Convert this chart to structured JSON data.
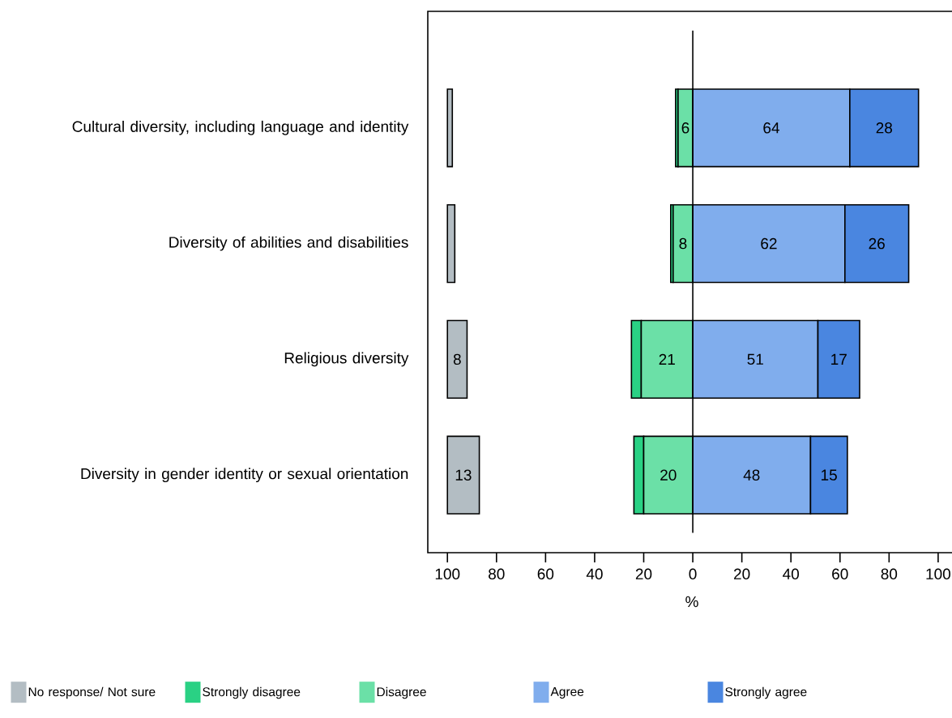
{
  "chart_data": {
    "type": "bar",
    "orientation": "horizontal",
    "xlabel": "%",
    "categories": [
      "Cultural diversity, including language and identity",
      "Diversity of abilities and disabilities",
      "Religious diversity",
      "Diversity in gender identity or sexual orientation"
    ],
    "series": [
      {
        "name": "No response/ Not sure",
        "color": "#b3bdc3",
        "base": [
          -100,
          -100,
          -100,
          -100
        ],
        "values": [
          2,
          3,
          8,
          13
        ],
        "value_labels": [
          null,
          null,
          "8",
          "13"
        ]
      },
      {
        "name": "Strongly disagree",
        "color": "#2ad184",
        "base": [
          -6,
          -8,
          -21,
          -20
        ],
        "values": [
          -1,
          -1,
          -4,
          -4
        ],
        "value_labels": [
          null,
          null,
          null,
          null
        ]
      },
      {
        "name": "Disagree",
        "color": "#6be0a7",
        "base": [
          0,
          0,
          0,
          0
        ],
        "values": [
          -6,
          -8,
          -21,
          -20
        ],
        "value_labels": [
          "6",
          "8",
          "21",
          "20"
        ]
      },
      {
        "name": "Agree",
        "color": "#80aded",
        "base": [
          0,
          0,
          0,
          0
        ],
        "values": [
          64,
          62,
          51,
          48
        ],
        "value_labels": [
          "64",
          "62",
          "51",
          "48"
        ]
      },
      {
        "name": "Strongly agree",
        "color": "#4a86e0",
        "base": [
          64,
          62,
          51,
          48
        ],
        "values": [
          28,
          26,
          17,
          15
        ],
        "value_labels": [
          "28",
          "26",
          "17",
          "15"
        ]
      }
    ],
    "xlim": [
      -108,
      107.3
    ],
    "xticks": [
      {
        "value": -100,
        "label": "100"
      },
      {
        "value": -80,
        "label": "80"
      },
      {
        "value": -60,
        "label": "60"
      },
      {
        "value": -40,
        "label": "40"
      },
      {
        "value": -20,
        "label": "20"
      },
      0,
      20,
      40,
      60,
      80,
      100
    ],
    "ref_lines": [
      {
        "axis": "x",
        "value": 0
      }
    ],
    "legend": "bottom"
  }
}
